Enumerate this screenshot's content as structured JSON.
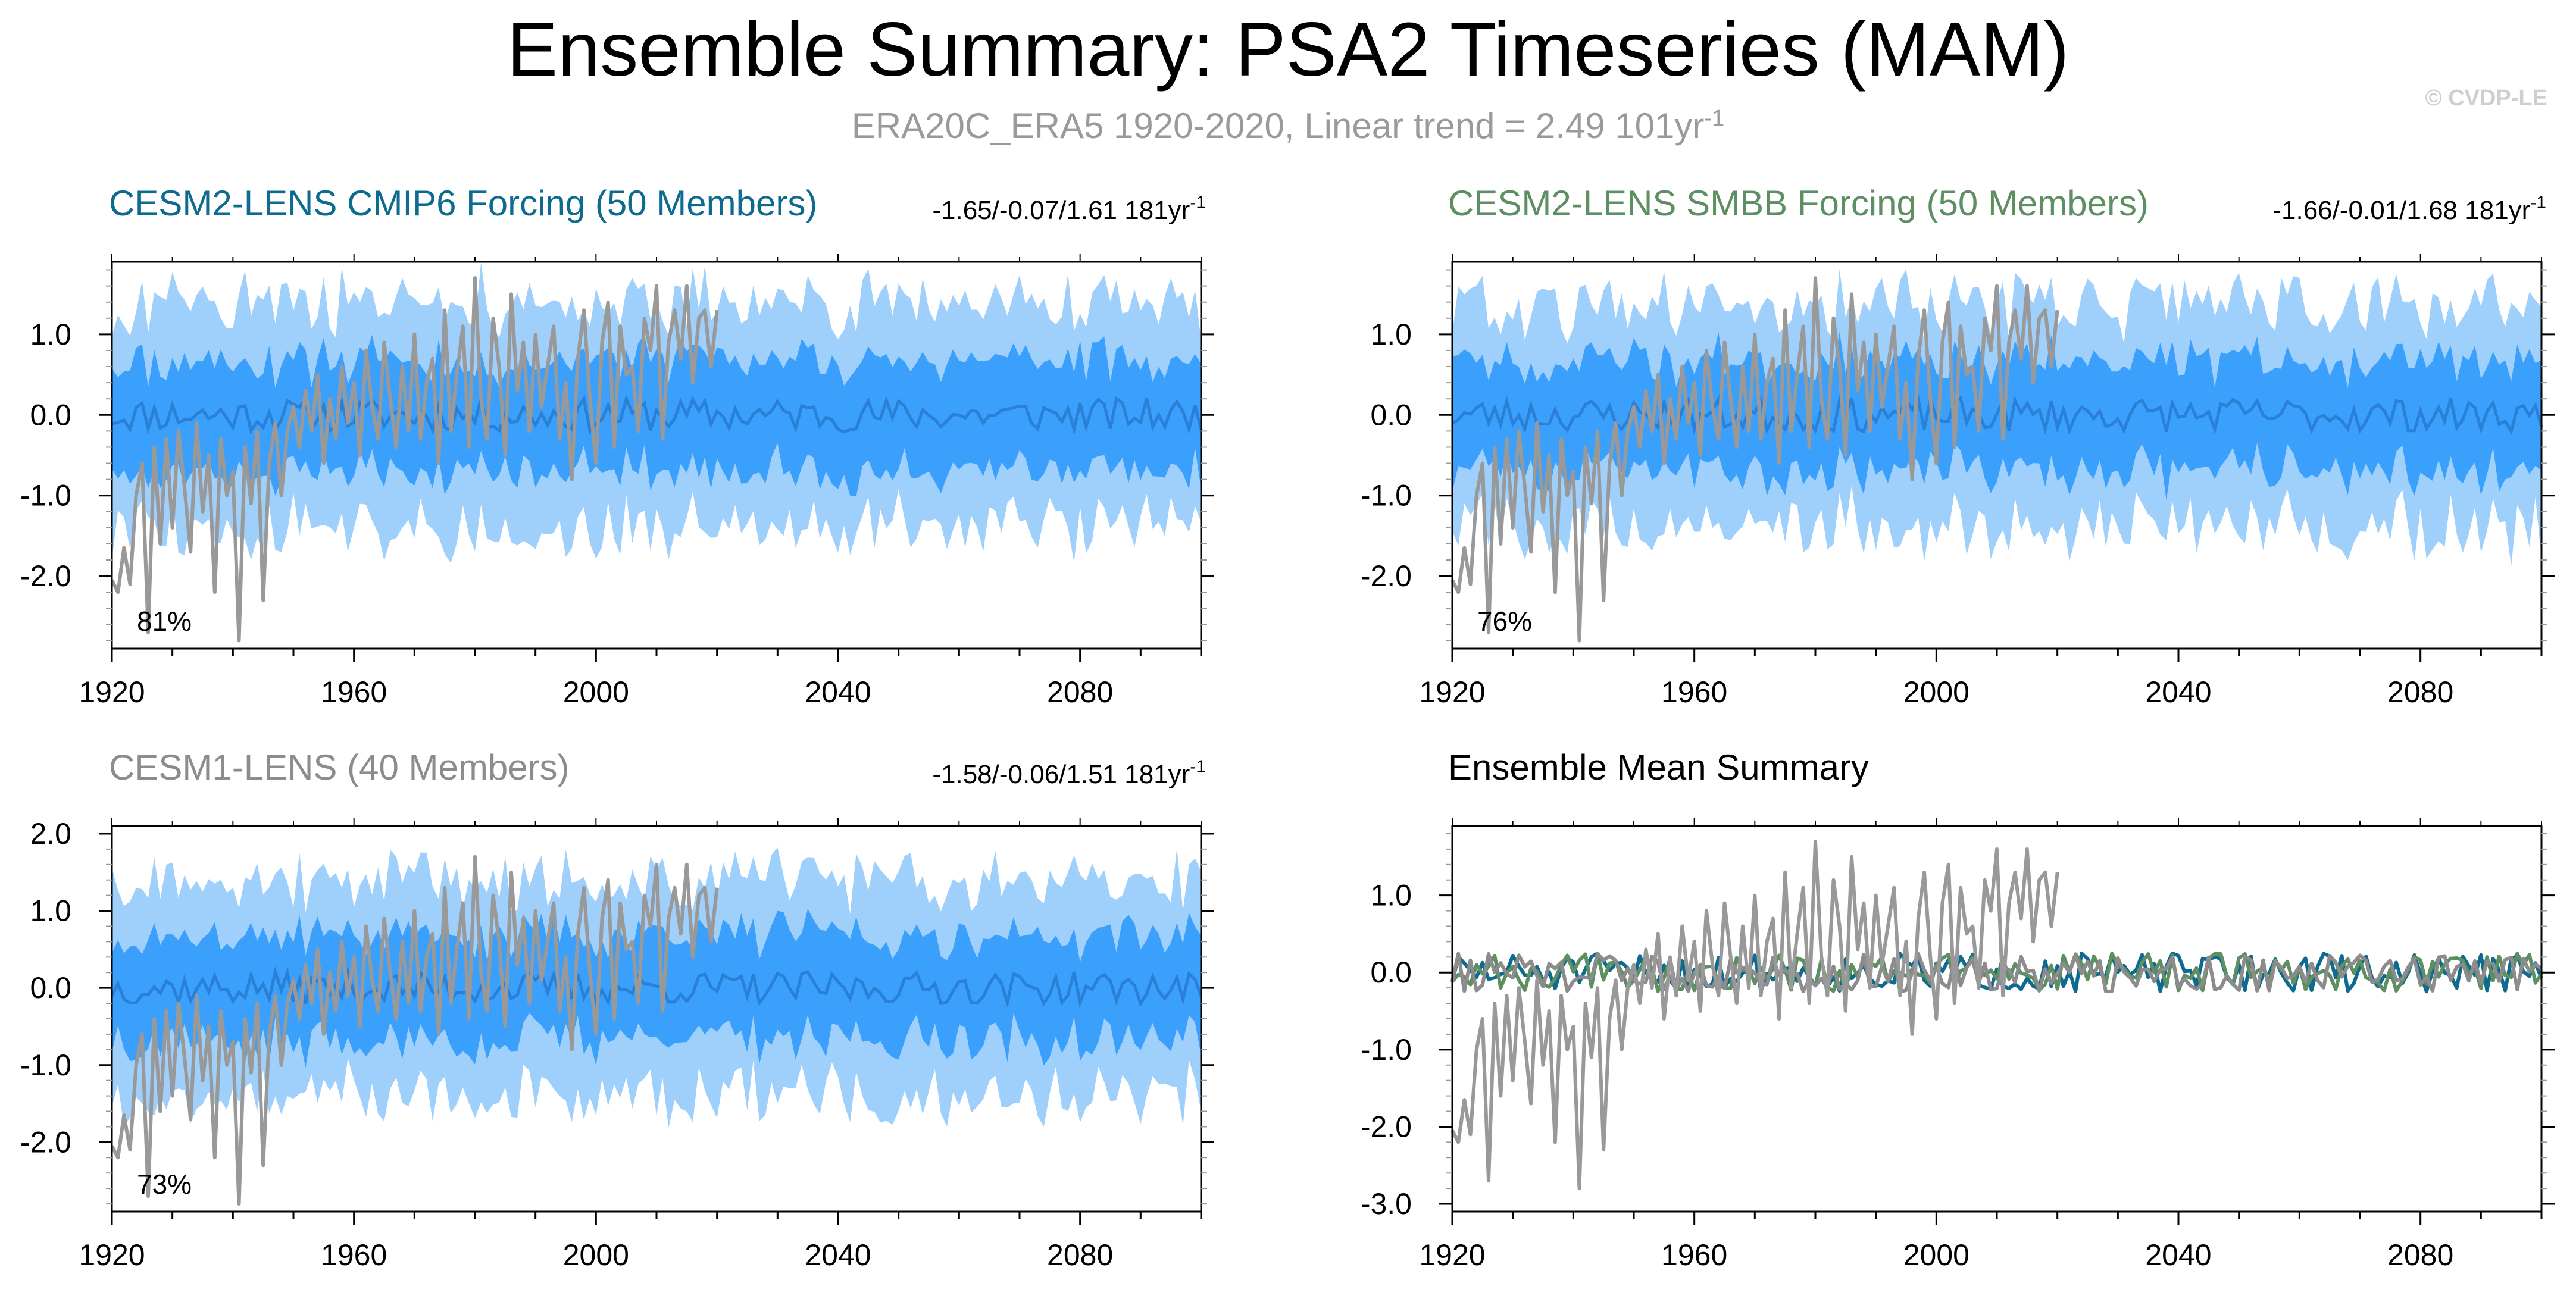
{
  "figure": {
    "title": "Ensemble Summary: PSA2 Timeseries (MAM)",
    "subtitle": "ERA20C_ERA5 1920-2020, Linear trend = 2.49 101yr",
    "subtitle_sup": "-1",
    "watermark": "© CVDP-LE",
    "colors": {
      "cmip6": "#0e6b8f",
      "smbb": "#5e8f63",
      "cesm1": "#8c8c8c",
      "obs": "#999999",
      "band_outer": "#9fcffb",
      "band_inner": "#3aa0fb",
      "ens_mean": "#2a7fd6"
    }
  },
  "chart_data": [
    {
      "type": "area",
      "id": "cmip6",
      "title": "CESM2-LENS CMIP6 Forcing (50 Members)",
      "title_color": "#0e6b8f",
      "trend_text": "-1.65/-0.07/1.61 181yr",
      "trend_sup": "-1",
      "percent_label": "81%",
      "xlim": [
        1920,
        2100
      ],
      "ylim": [
        -2.9,
        1.9
      ],
      "x_ticks": [
        1920,
        1960,
        2000,
        2040,
        2080
      ],
      "x_tick_labels": [
        "1920",
        "1960",
        "2000",
        "2040",
        "2080"
      ],
      "y_ticks": [
        1.0,
        0.0,
        -1.0,
        -2.0
      ],
      "y_tick_labels": [
        "1.0",
        "0.0",
        "-1.0",
        "-2.0"
      ],
      "seed": 11,
      "outer_halfwidth": 1.35,
      "inner_halfwidth": 0.68,
      "obs_series": "ERA20C_ERA5",
      "obs_range": [
        1920,
        2020
      ],
      "obs_trend_per_101yr": 2.49
    },
    {
      "type": "area",
      "id": "smbb",
      "title": "CESM2-LENS SMBB Forcing (50 Members)",
      "title_color": "#5e8f63",
      "trend_text": "-1.66/-0.01/1.68 181yr",
      "trend_sup": "-1",
      "percent_label": "76%",
      "xlim": [
        1920,
        2100
      ],
      "ylim": [
        -2.9,
        1.9
      ],
      "x_ticks": [
        1920,
        1960,
        2000,
        2040,
        2080
      ],
      "x_tick_labels": [
        "1920",
        "1960",
        "2000",
        "2040",
        "2080"
      ],
      "y_ticks": [
        1.0,
        0.0,
        -1.0,
        -2.0
      ],
      "y_tick_labels": [
        "1.0",
        "0.0",
        "-1.0",
        "-2.0"
      ],
      "seed": 23,
      "outer_halfwidth": 1.35,
      "inner_halfwidth": 0.68,
      "obs_series": "ERA20C_ERA5",
      "obs_range": [
        1920,
        2020
      ],
      "obs_trend_per_101yr": 2.49
    },
    {
      "type": "area",
      "id": "cesm1",
      "title": "CESM1-LENS (40 Members)",
      "title_color": "#8c8c8c",
      "trend_text": "-1.58/-0.06/1.51 181yr",
      "trend_sup": "-1",
      "percent_label": "73%",
      "xlim": [
        1920,
        2100
      ],
      "ylim": [
        -2.9,
        2.1
      ],
      "x_ticks": [
        1920,
        1960,
        2000,
        2040,
        2080
      ],
      "x_tick_labels": [
        "1920",
        "1960",
        "2000",
        "2040",
        "2080"
      ],
      "y_ticks": [
        2.0,
        1.0,
        0.0,
        -1.0,
        -2.0
      ],
      "y_tick_labels": [
        "2.0",
        "1.0",
        "0.0",
        "-1.0",
        "-2.0"
      ],
      "seed": 37,
      "outer_halfwidth": 1.35,
      "inner_halfwidth": 0.68,
      "obs_series": "ERA20C_ERA5",
      "obs_range": [
        1920,
        2020
      ],
      "obs_trend_per_101yr": 2.49
    },
    {
      "type": "line",
      "id": "ensmean",
      "title": "Ensemble Mean Summary",
      "title_color": "#000000",
      "xlim": [
        1920,
        2100
      ],
      "ylim": [
        -3.1,
        1.9
      ],
      "x_ticks": [
        1920,
        1960,
        2000,
        2040,
        2080
      ],
      "x_tick_labels": [
        "1920",
        "1960",
        "2000",
        "2040",
        "2080"
      ],
      "y_ticks": [
        1.0,
        0.0,
        -1.0,
        -2.0,
        -3.0
      ],
      "y_tick_labels": [
        "1.0",
        "0.0",
        "-1.0",
        "-2.0",
        "-3.0"
      ],
      "series": [
        {
          "name": "CESM2-LENS CMIP6 Forcing",
          "color": "#0e6b8f"
        },
        {
          "name": "CESM2-LENS SMBB Forcing",
          "color": "#5e8f63"
        },
        {
          "name": "CESM1-LENS",
          "color": "#8c8c8c"
        },
        {
          "name": "ERA20C_ERA5",
          "color": "#999999"
        }
      ],
      "seed": 51
    }
  ],
  "observations": {
    "name": "ERA20C_ERA5",
    "x_start": 1920,
    "values": [
      -2.05,
      -2.2,
      -1.65,
      -2.1,
      -1.0,
      -0.6,
      -2.7,
      -0.4,
      -1.6,
      -0.3,
      -1.4,
      -0.2,
      -0.9,
      -1.7,
      -0.1,
      -1.2,
      -0.5,
      -2.2,
      -0.3,
      -1.0,
      -0.7,
      -2.8,
      -0.4,
      -1.1,
      -0.2,
      -2.3,
      -0.6,
      -0.1,
      -1.0,
      -0.2,
      0.1,
      -0.4,
      0.3,
      -0.2,
      0.5,
      -0.6,
      0.2,
      -0.3,
      0.6,
      -0.1,
      0.4,
      -0.5,
      0.8,
      0.1,
      -0.3,
      0.9,
      0.2,
      -0.4,
      0.6,
      -0.2,
      1.0,
      -0.3,
      0.4,
      0.7,
      -0.6,
      1.3,
      -0.2,
      0.5,
      1.1,
      -0.4,
      1.7,
      0.2,
      -0.3,
      1.2,
      0.6,
      -0.5,
      1.5,
      0.3,
      0.9,
      -0.2,
      1.0,
      0.1,
      0.6,
      1.1,
      -0.3,
      0.4,
      -0.8,
      0.7,
      1.3,
      0.2,
      -0.6,
      0.9,
      1.4,
      -0.4,
      1.1,
      0.5,
      0.6,
      -0.2,
      1.2,
      0.8,
      1.6,
      -0.3,
      0.9,
      1.3,
      0.7,
      1.6,
      0.4,
      1.2,
      1.3,
      0.6,
      1.3
    ]
  }
}
